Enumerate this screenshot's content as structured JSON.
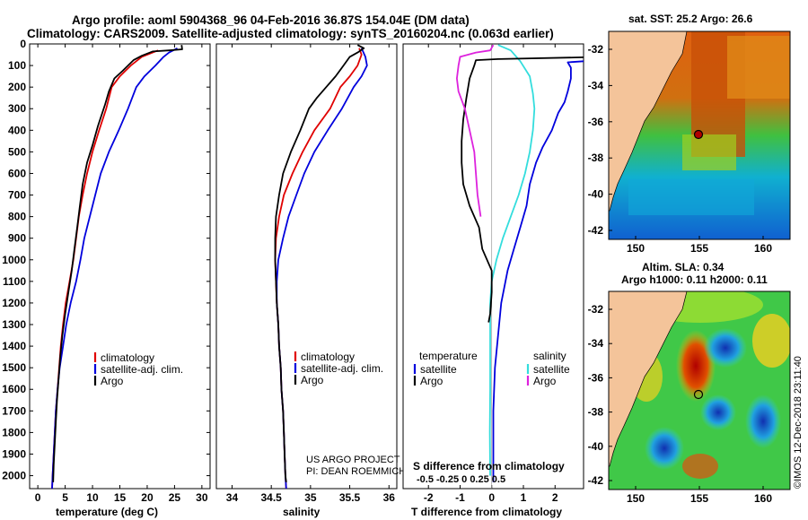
{
  "header": {
    "line1": "Argo profile: aoml 5904368_96 04-Feb-2016 36.87S 154.04E (DM data)",
    "line2": "Climatology: CARS2009. Satellite-adjusted climatology: synTS_20160204.nc (0.063d earlier)"
  },
  "colors": {
    "climatology": "#e00000",
    "satellite": "#0000dd",
    "argo": "#000000",
    "sat_temp": "#0000dd",
    "sat_sal": "#33dddd",
    "argo_temp": "#000000",
    "argo_sal": "#dd22dd"
  },
  "depth_axis": {
    "ticks": [
      0,
      100,
      200,
      300,
      400,
      500,
      600,
      700,
      800,
      900,
      1000,
      1100,
      1200,
      1300,
      1400,
      1500,
      1600,
      1700,
      1800,
      1900,
      2000
    ],
    "range": [
      0,
      2060
    ]
  },
  "chart_data": [
    {
      "type": "line",
      "id": "temperature",
      "xlabel": "temperature (deg C)",
      "xlim": [
        -1.5,
        31.5
      ],
      "xticks": [
        0,
        5,
        10,
        15,
        20,
        25,
        30
      ],
      "legend": [
        "climatology",
        "satellite-adj. clim.",
        "Argo"
      ],
      "legend_position": "lower-right",
      "series": [
        {
          "name": "climatology",
          "color": "#e00000",
          "points": [
            [
              22,
              30
            ],
            [
              19,
              60
            ],
            [
              17,
              100
            ],
            [
              15,
              150
            ],
            [
              13.5,
              200
            ],
            [
              12.5,
              300
            ],
            [
              11.2,
              400
            ],
            [
              10,
              500
            ],
            [
              9,
              600
            ],
            [
              8.2,
              700
            ],
            [
              7.5,
              800
            ],
            [
              7,
              900
            ],
            [
              6.5,
              1000
            ],
            [
              5.8,
              1100
            ],
            [
              5.1,
              1200
            ],
            [
              4.6,
              1300
            ],
            [
              4.2,
              1400
            ],
            [
              3.9,
              1500
            ],
            [
              3.6,
              1600
            ],
            [
              3.3,
              1700
            ],
            [
              3.1,
              1800
            ],
            [
              2.9,
              1900
            ],
            [
              2.7,
              2000
            ],
            [
              2.6,
              2060
            ]
          ]
        },
        {
          "name": "satellite-adj. clim.",
          "color": "#0000dd",
          "points": [
            [
              25.5,
              20
            ],
            [
              24,
              40
            ],
            [
              23,
              60
            ],
            [
              21.5,
              100
            ],
            [
              19.5,
              150
            ],
            [
              18,
              200
            ],
            [
              16.5,
              300
            ],
            [
              14.8,
              400
            ],
            [
              13,
              500
            ],
            [
              11.5,
              600
            ],
            [
              10.5,
              700
            ],
            [
              9.5,
              800
            ],
            [
              8.5,
              900
            ],
            [
              7.8,
              1000
            ],
            [
              7,
              1100
            ],
            [
              6,
              1200
            ],
            [
              5.2,
              1300
            ],
            [
              4.6,
              1400
            ],
            [
              4,
              1500
            ],
            [
              3.6,
              1600
            ],
            [
              3.3,
              1700
            ],
            [
              3.1,
              1800
            ],
            [
              2.9,
              1900
            ],
            [
              2.7,
              2000
            ],
            [
              2.6,
              2060
            ]
          ]
        },
        {
          "name": "Argo",
          "color": "#000000",
          "points": [
            [
              26.3,
              5
            ],
            [
              26.4,
              25
            ],
            [
              24,
              30
            ],
            [
              21,
              35
            ],
            [
              19,
              55
            ],
            [
              17.5,
              75
            ],
            [
              16.5,
              100
            ],
            [
              15.5,
              125
            ],
            [
              14,
              160
            ],
            [
              13,
              220
            ],
            [
              12.3,
              280
            ],
            [
              11,
              380
            ],
            [
              10,
              470
            ],
            [
              9,
              550
            ],
            [
              8.2,
              650
            ],
            [
              7.7,
              750
            ],
            [
              7.2,
              850
            ],
            [
              6.7,
              950
            ],
            [
              6.2,
              1050
            ],
            [
              5.6,
              1150
            ],
            [
              5,
              1250
            ],
            [
              4.5,
              1350
            ],
            [
              4.1,
              1450
            ],
            [
              3.8,
              1550
            ],
            [
              3.5,
              1650
            ],
            [
              3.3,
              1750
            ],
            [
              3.1,
              1850
            ],
            [
              2.9,
              1950
            ],
            [
              2.8,
              2030
            ]
          ]
        }
      ]
    },
    {
      "type": "line",
      "id": "salinity",
      "xlabel": "salinity",
      "xlim": [
        33.8,
        36.1
      ],
      "xticks": [
        34,
        34.5,
        35,
        35.5,
        36
      ],
      "legend": [
        "climatology",
        "satellite-adj. clim.",
        "Argo"
      ],
      "legend_position": "lower-right",
      "series": [
        {
          "name": "climatology",
          "color": "#e00000",
          "points": [
            [
              35.62,
              20
            ],
            [
              35.65,
              50
            ],
            [
              35.6,
              100
            ],
            [
              35.5,
              150
            ],
            [
              35.38,
              200
            ],
            [
              35.25,
              300
            ],
            [
              35.05,
              400
            ],
            [
              34.9,
              500
            ],
            [
              34.77,
              600
            ],
            [
              34.66,
              700
            ],
            [
              34.6,
              800
            ],
            [
              34.56,
              900
            ],
            [
              34.55,
              1000
            ],
            [
              34.56,
              1100
            ],
            [
              34.57,
              1200
            ],
            [
              34.59,
              1300
            ],
            [
              34.6,
              1400
            ],
            [
              34.62,
              1500
            ],
            [
              34.63,
              1600
            ],
            [
              34.65,
              1700
            ],
            [
              34.66,
              1800
            ],
            [
              34.67,
              1900
            ],
            [
              34.68,
              2000
            ],
            [
              34.69,
              2060
            ]
          ]
        },
        {
          "name": "satellite-adj. clim.",
          "color": "#0000dd",
          "points": [
            [
              35.65,
              20
            ],
            [
              35.7,
              60
            ],
            [
              35.72,
              100
            ],
            [
              35.65,
              150
            ],
            [
              35.55,
              200
            ],
            [
              35.4,
              300
            ],
            [
              35.22,
              400
            ],
            [
              35.05,
              500
            ],
            [
              34.92,
              600
            ],
            [
              34.82,
              700
            ],
            [
              34.72,
              800
            ],
            [
              34.65,
              900
            ],
            [
              34.59,
              1000
            ],
            [
              34.57,
              1100
            ],
            [
              34.57,
              1200
            ],
            [
              34.59,
              1300
            ],
            [
              34.6,
              1400
            ],
            [
              34.62,
              1500
            ],
            [
              34.63,
              1600
            ],
            [
              34.65,
              1700
            ],
            [
              34.66,
              1800
            ],
            [
              34.67,
              1900
            ],
            [
              34.68,
              2000
            ],
            [
              34.69,
              2060
            ]
          ]
        },
        {
          "name": "Argo",
          "color": "#000000",
          "points": [
            [
              35.6,
              5
            ],
            [
              35.68,
              20
            ],
            [
              35.6,
              40
            ],
            [
              35.5,
              60
            ],
            [
              35.42,
              100
            ],
            [
              35.32,
              150
            ],
            [
              35.2,
              200
            ],
            [
              35.08,
              250
            ],
            [
              34.98,
              300
            ],
            [
              34.87,
              400
            ],
            [
              34.75,
              500
            ],
            [
              34.65,
              600
            ],
            [
              34.6,
              700
            ],
            [
              34.56,
              800
            ],
            [
              34.55,
              900
            ],
            [
              34.55,
              1000
            ],
            [
              34.56,
              1100
            ],
            [
              34.57,
              1200
            ],
            [
              34.59,
              1300
            ],
            [
              34.6,
              1400
            ],
            [
              34.62,
              1500
            ],
            [
              34.63,
              1600
            ],
            [
              34.65,
              1700
            ],
            [
              34.66,
              1800
            ],
            [
              34.67,
              1900
            ],
            [
              34.68,
              2000
            ],
            [
              34.69,
              2030
            ]
          ]
        }
      ],
      "credit": [
        "US ARGO PROJECT",
        "PI: DEAN ROEMMICH"
      ]
    },
    {
      "type": "line",
      "id": "difference",
      "xlabel": "T difference from climatology",
      "xlabel2": "S difference from climatology",
      "xlim": [
        -2.8,
        2.9
      ],
      "xticks": [
        -2,
        -1,
        0,
        1,
        2
      ],
      "xtick_labels_bottom": [
        "-2",
        "-1",
        "0",
        "1",
        "2"
      ],
      "xtick_labels_top_text": "-0.5  -0.25    0    0.25   0.5",
      "legend_left": {
        "title": "temperature",
        "items": [
          "satellite",
          "Argo"
        ]
      },
      "legend_right": {
        "title": "salinity",
        "items": [
          "satellite",
          "Argo"
        ]
      },
      "series": [
        {
          "name": "T satellite",
          "color": "#0000dd",
          "points": [
            [
              2.9,
              80
            ],
            [
              2.4,
              85
            ],
            [
              2.5,
              110
            ],
            [
              2.5,
              160
            ],
            [
              2.4,
              220
            ],
            [
              2.3,
              270
            ],
            [
              2.1,
              320
            ],
            [
              1.9,
              400
            ],
            [
              1.6,
              480
            ],
            [
              1.4,
              550
            ],
            [
              1.2,
              650
            ],
            [
              1.1,
              750
            ],
            [
              0.9,
              850
            ],
            [
              0.7,
              950
            ],
            [
              0.5,
              1050
            ],
            [
              0.3,
              1200
            ],
            [
              0.2,
              1350
            ],
            [
              0.1,
              1500
            ],
            [
              0.05,
              1700
            ],
            [
              0.05,
              1900
            ],
            [
              0.05,
              2030
            ]
          ]
        },
        {
          "name": "S satellite",
          "color": "#33dddd",
          "points": [
            [
              0.2,
              5
            ],
            [
              0.6,
              30
            ],
            [
              0.9,
              80
            ],
            [
              1.2,
              150
            ],
            [
              1.3,
              230
            ],
            [
              1.35,
              300
            ],
            [
              1.3,
              400
            ],
            [
              1.2,
              500
            ],
            [
              1.05,
              600
            ],
            [
              0.85,
              700
            ],
            [
              0.6,
              800
            ],
            [
              0.35,
              900
            ],
            [
              0.15,
              1000
            ],
            [
              0,
              1100
            ],
            [
              -0.05,
              1200
            ],
            [
              -0.05,
              1400
            ],
            [
              -0.05,
              1600
            ],
            [
              -0.06,
              1800
            ],
            [
              -0.05,
              2000
            ]
          ]
        },
        {
          "name": "T Argo",
          "color": "#000000",
          "points": [
            [
              2.9,
              62
            ],
            [
              0.2,
              70
            ],
            [
              -0.5,
              75
            ],
            [
              -0.55,
              100
            ],
            [
              -0.7,
              160
            ],
            [
              -0.8,
              250
            ],
            [
              -0.9,
              350
            ],
            [
              -0.95,
              450
            ],
            [
              -0.95,
              550
            ],
            [
              -0.9,
              650
            ],
            [
              -0.7,
              750
            ],
            [
              -0.4,
              850
            ],
            [
              -0.3,
              950
            ],
            [
              0,
              1050
            ],
            [
              0,
              1150
            ],
            [
              -0.05,
              1250
            ],
            [
              -0.1,
              1290
            ]
          ]
        },
        {
          "name": "S Argo",
          "color": "#dd22dd",
          "points": [
            [
              0.05,
              5
            ],
            [
              -0.05,
              30
            ],
            [
              -0.5,
              40
            ],
            [
              -1.0,
              60
            ],
            [
              -1.05,
              100
            ],
            [
              -1.1,
              160
            ],
            [
              -1.05,
              220
            ],
            [
              -0.85,
              300
            ],
            [
              -0.7,
              400
            ],
            [
              -0.55,
              500
            ],
            [
              -0.5,
              600
            ],
            [
              -0.45,
              700
            ],
            [
              -0.35,
              800
            ]
          ]
        }
      ]
    }
  ],
  "maps": [
    {
      "title": "sat. SST: 25.2 Argo: 26.6",
      "x_ticks": [
        "150",
        "155",
        "160"
      ],
      "y_ticks": [
        "-32",
        "-34",
        "-36",
        "-38",
        "-40",
        "-42"
      ]
    },
    {
      "title": "Altim. SLA: 0.34",
      "title2": "Argo h1000: 0.11 h2000: 0.11",
      "x_ticks": [
        "150",
        "155",
        "160"
      ],
      "y_ticks": [
        "-32",
        "-34",
        "-36",
        "-38",
        "-40",
        "-42"
      ]
    }
  ],
  "watermark": "©IMOS 12-Dec-2018 23:11:40"
}
